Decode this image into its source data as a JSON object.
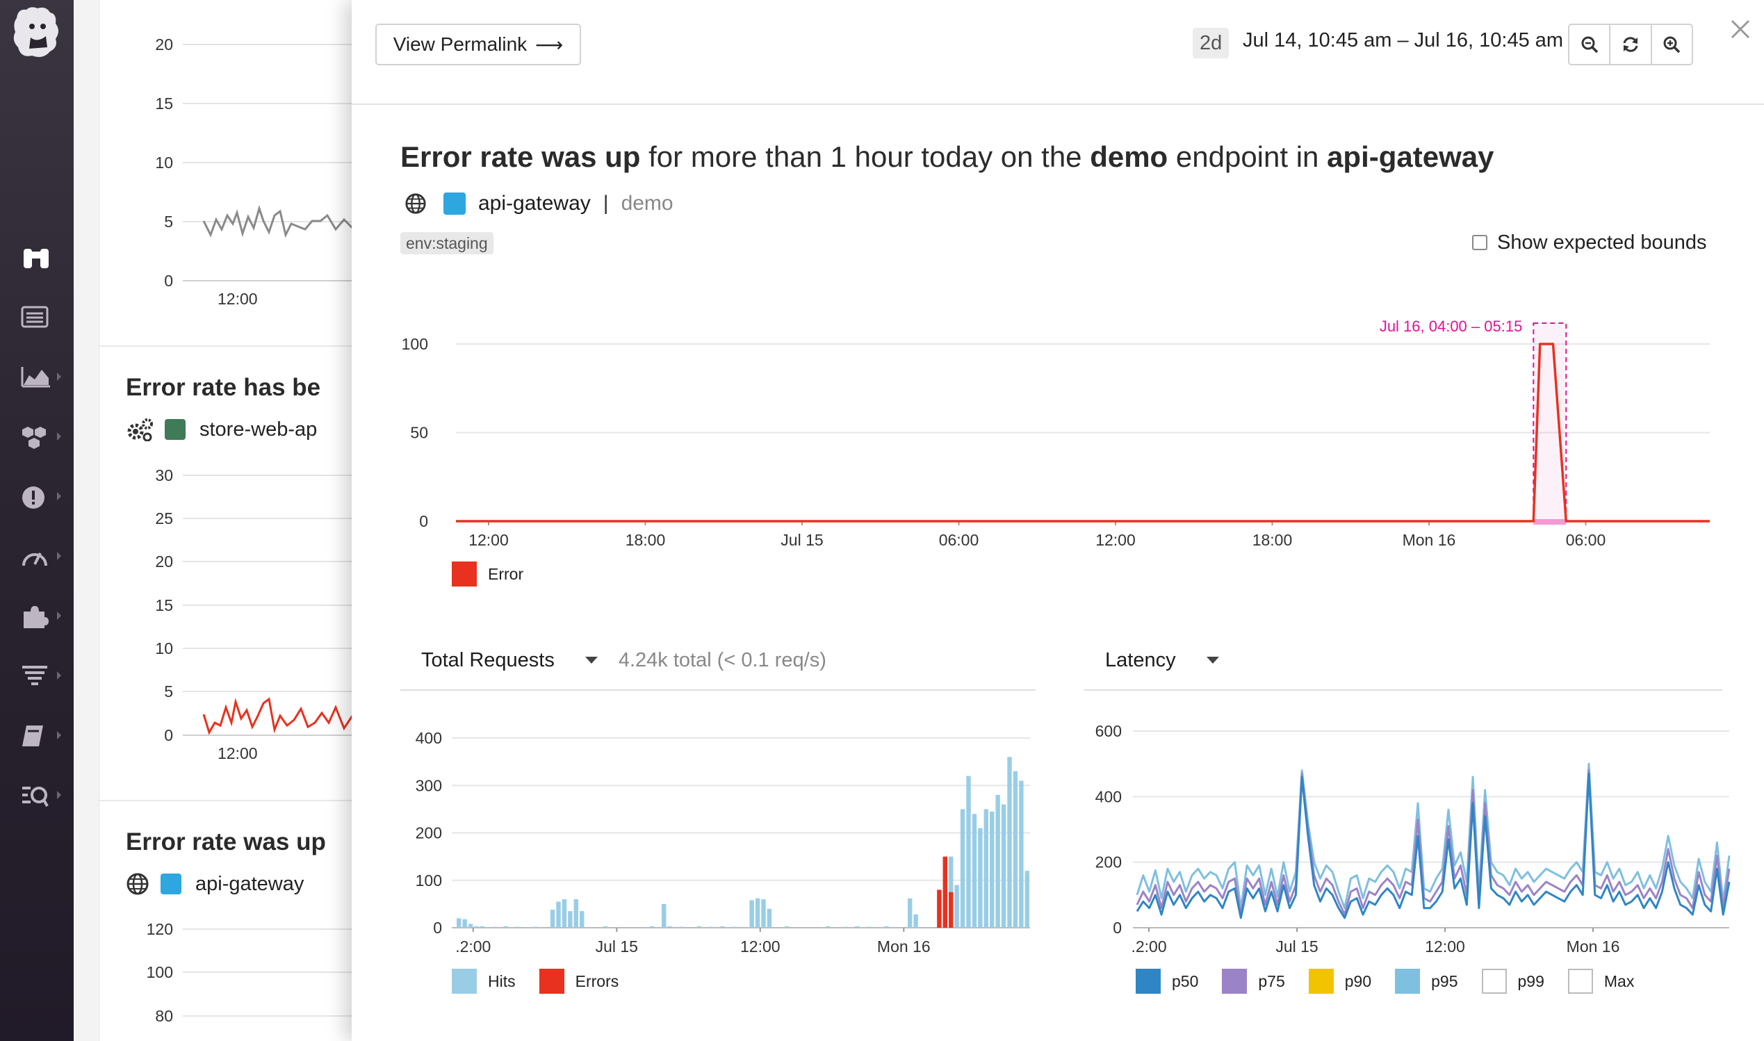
{
  "colors": {
    "nav_bg": "#2a2430",
    "accent_blue": "#2ea6df",
    "store_green": "#3f7b57",
    "error_red": "#e8311e",
    "hits_blue": "#99cde6",
    "anomaly_pink": "#e0109a",
    "p50": "#2f86c4",
    "p75": "#9b83c7",
    "p90": "#f2c300",
    "p95": "#7fbfe0"
  },
  "sidebar": {
    "items": [
      {
        "icon": "binoculars-icon"
      },
      {
        "icon": "list-icon"
      },
      {
        "icon": "area-chart-icon"
      },
      {
        "icon": "hexagons-icon"
      },
      {
        "icon": "alert-icon"
      },
      {
        "icon": "gauge-icon"
      },
      {
        "icon": "puzzle-icon"
      },
      {
        "icon": "filter-lines-icon"
      },
      {
        "icon": "notebook-icon"
      },
      {
        "icon": "watchdog-icon"
      }
    ]
  },
  "background": {
    "chart1": {
      "ticks": [
        "20",
        "15",
        "10",
        "5",
        "0"
      ],
      "xtick": "12:00"
    },
    "card2": {
      "title": "Error rate has be",
      "service": "store-web-ap",
      "ticks": [
        "30",
        "25",
        "20",
        "15",
        "10",
        "5",
        "0"
      ],
      "xtick": "12:00"
    },
    "card3": {
      "title": "Error rate was up",
      "service": "api-gateway",
      "ticks": [
        "120",
        "100",
        "80"
      ]
    }
  },
  "header": {
    "permalink_label": "View Permalink",
    "range_badge": "2d",
    "range_text": "Jul 14, 10:45 am – Jul 16, 10:45 am",
    "zoom_out_icon": "zoom-out-icon",
    "refresh_icon": "refresh-icon",
    "zoom_in_icon": "zoom-in-icon",
    "close_icon": "close-icon"
  },
  "story": {
    "t1": "Error rate was up",
    "t2": " for more than 1 hour today on the ",
    "t3": "demo",
    "t4": " endpoint in ",
    "t5": "api-gateway",
    "service": "api-gateway",
    "separator": "|",
    "endpoint": "demo",
    "tag": "env:staging",
    "show_bounds_label": "Show expected bounds"
  },
  "main_chart": {
    "annotation": "Jul 16, 04:00 – 05:15",
    "legend": "Error"
  },
  "requests": {
    "title": "Total Requests",
    "summary": "4.24k total (< 0.1 req/s)",
    "legend": [
      "Hits",
      "Errors"
    ]
  },
  "latency": {
    "title": "Latency",
    "legend": [
      "p50",
      "p75",
      "p90",
      "p95",
      "p99",
      "Max"
    ]
  },
  "chart_data": [
    {
      "type": "line",
      "title": "",
      "x_labels": [
        "12:00",
        "18:00",
        "Jul 15",
        "06:00",
        "12:00",
        "18:00",
        "Mon 16",
        "06:00"
      ],
      "yticks": [
        0,
        50,
        100
      ],
      "ylim": [
        0,
        100
      ],
      "grid": true,
      "series": [
        {
          "name": "Error",
          "x": [
            "Jul 14 10:45",
            "Jul 16 04:00",
            "Jul 16 04:15",
            "Jul 16 04:45",
            "Jul 16 05:15",
            "Jul 16 10:45"
          ],
          "values": [
            0,
            0,
            100,
            100,
            0,
            0
          ]
        }
      ],
      "annotation": {
        "label": "Jul 16, 04:00 – 05:15",
        "from": "Jul 16 04:00",
        "to": "Jul 16 05:15"
      },
      "legend_position": "bottom-left"
    },
    {
      "type": "bar",
      "title": "Total Requests",
      "x_labels": [
        ".2:00",
        "Jul 15",
        "12:00",
        "Mon 16"
      ],
      "yticks": [
        0,
        100,
        200,
        300,
        400
      ],
      "ylim": [
        0,
        400
      ],
      "grid": true,
      "series": [
        {
          "name": "Hits",
          "values": [
            20,
            18,
            8,
            3,
            3,
            0,
            2,
            0,
            3,
            0,
            2,
            0,
            0,
            2,
            0,
            0,
            38,
            55,
            60,
            35,
            60,
            35,
            0,
            0,
            0,
            3,
            0,
            0,
            0,
            0,
            0,
            0,
            0,
            3,
            0,
            50,
            3,
            0,
            2,
            0,
            0,
            3,
            0,
            2,
            0,
            3,
            0,
            2,
            0,
            0,
            58,
            62,
            60,
            40,
            0,
            0,
            3,
            0,
            0,
            0,
            0,
            0,
            0,
            3,
            0,
            0,
            2,
            0,
            3,
            0,
            2,
            0,
            0,
            3,
            0,
            0,
            0,
            62,
            28,
            0,
            0,
            0,
            0,
            0,
            150,
            90,
            250,
            320,
            240,
            210,
            250,
            245,
            280,
            260,
            360,
            330,
            310,
            120
          ]
        },
        {
          "name": "Errors",
          "values": [
            0,
            0,
            0,
            0,
            0,
            0,
            0,
            0,
            0,
            0,
            0,
            0,
            0,
            0,
            0,
            0,
            0,
            0,
            0,
            0,
            0,
            0,
            0,
            0,
            0,
            0,
            0,
            0,
            0,
            0,
            0,
            0,
            0,
            0,
            0,
            0,
            0,
            0,
            0,
            0,
            0,
            0,
            0,
            0,
            0,
            0,
            0,
            0,
            0,
            0,
            0,
            0,
            0,
            0,
            0,
            0,
            0,
            0,
            0,
            0,
            0,
            0,
            0,
            0,
            0,
            0,
            0,
            0,
            0,
            0,
            0,
            0,
            0,
            0,
            0,
            0,
            0,
            0,
            0,
            0,
            0,
            0,
            80,
            150,
            75,
            0,
            0,
            0,
            0,
            0,
            0,
            0,
            0,
            0,
            0,
            0,
            0,
            0
          ]
        }
      ],
      "legend_position": "bottom-left"
    },
    {
      "type": "line",
      "title": "Latency",
      "x_labels": [
        ".2:00",
        "Jul 15",
        "12:00",
        "Mon 16"
      ],
      "yticks": [
        0,
        200,
        400,
        600
      ],
      "ylim": [
        0,
        600
      ],
      "grid": true,
      "series": [
        {
          "name": "p95",
          "values": [
            100,
            160,
            110,
            175,
            90,
            180,
            140,
            170,
            110,
            160,
            180,
            150,
            170,
            160,
            120,
            180,
            200,
            60,
            190,
            160,
            190,
            100,
            180,
            95,
            200,
            110,
            170,
            480,
            320,
            200,
            150,
            190,
            170,
            110,
            60,
            150,
            160,
            90,
            150,
            140,
            170,
            190,
            170,
            120,
            180,
            170,
            380,
            120,
            110,
            150,
            180,
            360,
            190,
            230,
            140,
            460,
            110,
            420,
            200,
            170,
            160,
            130,
            180,
            150,
            170,
            140,
            160,
            180,
            170,
            160,
            150,
            180,
            200,
            170,
            500,
            170,
            160,
            200,
            150,
            180,
            130,
            140,
            170,
            120,
            160,
            120,
            180,
            280,
            190,
            140,
            120,
            90,
            210,
            140,
            110,
            260,
            80,
            220
          ]
        },
        {
          "name": "p75",
          "values": [
            70,
            110,
            80,
            130,
            60,
            140,
            100,
            130,
            80,
            120,
            140,
            110,
            130,
            120,
            90,
            140,
            150,
            40,
            150,
            120,
            150,
            70,
            140,
            70,
            160,
            80,
            130,
            470,
            300,
            160,
            110,
            150,
            130,
            80,
            40,
            110,
            120,
            60,
            110,
            100,
            130,
            150,
            130,
            90,
            140,
            130,
            330,
            90,
            80,
            110,
            140,
            310,
            150,
            190,
            100,
            420,
            80,
            380,
            160,
            130,
            120,
            100,
            140,
            110,
            130,
            100,
            120,
            140,
            130,
            120,
            110,
            140,
            160,
            130,
            480,
            130,
            120,
            160,
            110,
            140,
            100,
            110,
            130,
            90,
            120,
            90,
            140,
            240,
            150,
            100,
            90,
            60,
            170,
            100,
            80,
            220,
            60,
            180
          ]
        },
        {
          "name": "p50",
          "values": [
            50,
            80,
            60,
            100,
            40,
            110,
            70,
            100,
            60,
            90,
            110,
            80,
            100,
            90,
            60,
            110,
            120,
            30,
            120,
            90,
            120,
            50,
            110,
            50,
            130,
            60,
            100,
            460,
            280,
            130,
            80,
            120,
            100,
            60,
            30,
            80,
            90,
            40,
            80,
            70,
            100,
            120,
            100,
            60,
            110,
            100,
            280,
            60,
            60,
            80,
            110,
            270,
            120,
            150,
            70,
            380,
            60,
            340,
            120,
            100,
            90,
            70,
            110,
            80,
            100,
            70,
            90,
            110,
            100,
            90,
            80,
            110,
            130,
            100,
            470,
            100,
            90,
            130,
            80,
            110,
            70,
            80,
            100,
            60,
            90,
            60,
            110,
            200,
            120,
            70,
            60,
            40,
            130,
            70,
            50,
            180,
            40,
            140
          ]
        }
      ],
      "legend_position": "bottom-left"
    }
  ]
}
